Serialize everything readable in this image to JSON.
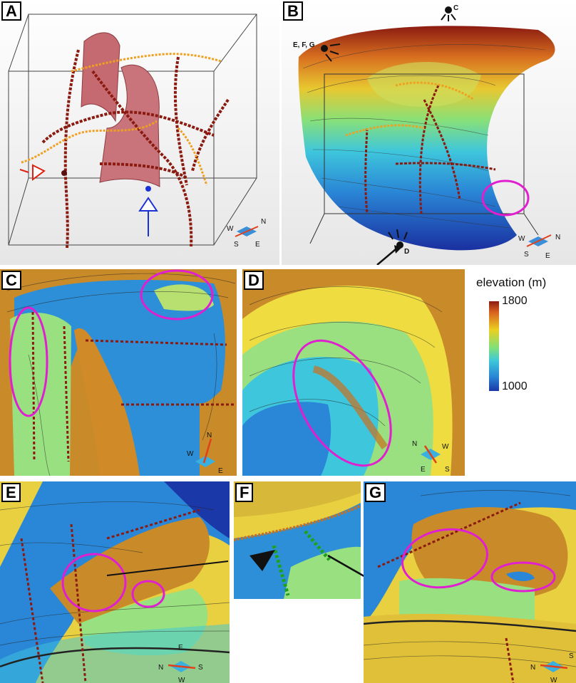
{
  "panels": {
    "a": "A",
    "b": "B",
    "c": "C",
    "d": "D",
    "e": "E",
    "f": "F",
    "g": "G"
  },
  "sun_labels": {
    "c": "C",
    "efg": "E, F, G",
    "d": "D"
  },
  "compass": {
    "a": {
      "n": "N",
      "s": "S",
      "w": "W",
      "e": "E"
    },
    "b": {
      "n": "N",
      "s": "S",
      "w": "W",
      "e": "E"
    },
    "c": {
      "n": "N",
      "s": "",
      "w": "W",
      "e": "E"
    },
    "d": {
      "n": "N",
      "s": "S",
      "w": "W",
      "e": "E"
    },
    "e": {
      "n": "N",
      "s": "S",
      "w": "W",
      "e": "E"
    },
    "g": {
      "n": "N",
      "s": "S",
      "w": "W",
      "e": ""
    }
  },
  "colorbar": {
    "title": "elevation (m)",
    "max": "1800",
    "min": "1000"
  },
  "colors": {
    "highlight": "#e020d0",
    "fault": "#8b1a10",
    "trace": "#f0a020"
  }
}
